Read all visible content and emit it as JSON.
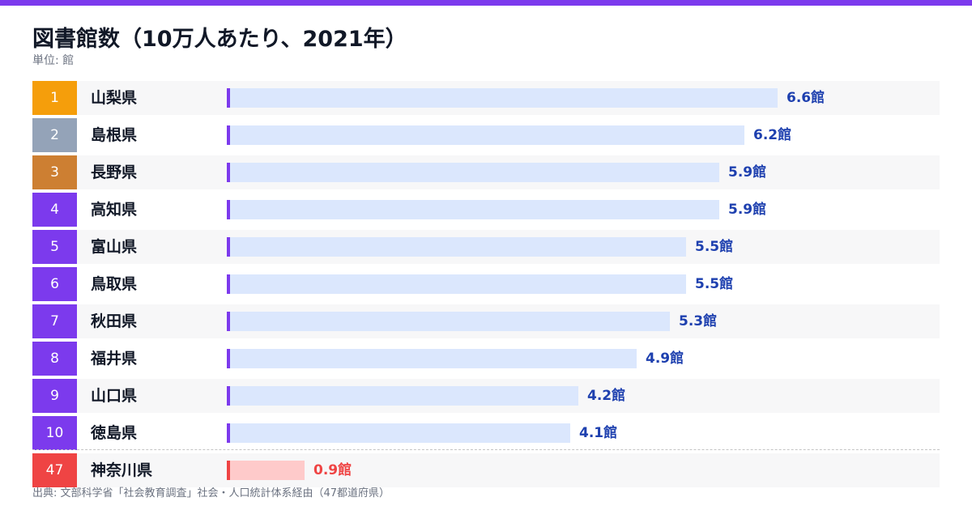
{
  "header": {
    "title": "図書館数（10万人あたり、2021年）",
    "unit": "単位: 館"
  },
  "colors": {
    "accent": "#7c3aed",
    "bar_fill": "#dbe7fd",
    "value_text": "#1e40af",
    "gold": "#f59e0b",
    "silver": "#94a3b8",
    "bronze": "#cd7f32",
    "bottom": "#ef4444",
    "bottom_bar": "#fecaca"
  },
  "chart_data": {
    "type": "bar",
    "orientation": "horizontal",
    "title": "図書館数（10万人あたり、2021年）",
    "unit": "館",
    "xlim": [
      0,
      6.6
    ],
    "categories": [
      "山梨県",
      "島根県",
      "長野県",
      "高知県",
      "富山県",
      "鳥取県",
      "秋田県",
      "福井県",
      "山口県",
      "徳島県",
      "神奈川県"
    ],
    "ranks": [
      "1",
      "2",
      "3",
      "4",
      "5",
      "6",
      "7",
      "8",
      "9",
      "10",
      "47"
    ],
    "values": [
      6.6,
      6.2,
      5.9,
      5.9,
      5.5,
      5.5,
      5.3,
      4.9,
      4.2,
      4.1,
      0.9
    ],
    "value_labels": [
      "6.6館",
      "6.2館",
      "5.9館",
      "5.9館",
      "5.5館",
      "5.5館",
      "5.3館",
      "4.9館",
      "4.2館",
      "4.1館",
      "0.9館"
    ]
  },
  "footer": {
    "source": "出典: 文部科学省「社会教育調査」社会・人口統計体系経由（47都道府県）"
  }
}
